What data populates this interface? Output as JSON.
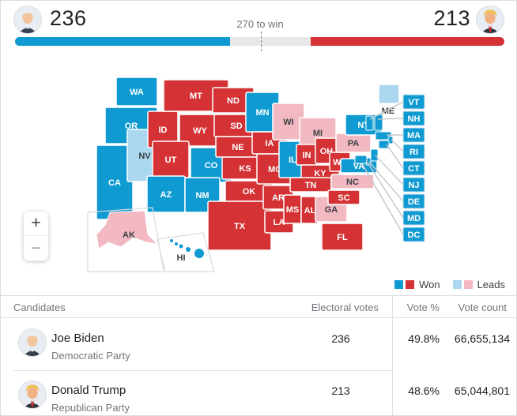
{
  "header": {
    "dem_electoral": "236",
    "rep_electoral": "213",
    "target_label": "270 to win",
    "bar": {
      "dem_pct": 43.9,
      "rep_pct": 39.6,
      "marker_pct": 50.2
    }
  },
  "colors": {
    "dem_won": "#0f9ad2",
    "rep_won": "#d43234",
    "dem_leads": "#abd7ef",
    "rep_leads": "#f2b9c2",
    "bar_track": "#e8e8e8",
    "label_on_won": "#ffffff",
    "label_on_leads": "#3b4045",
    "leader_line": "#c6c9cd",
    "inset_border": "#d8dadd"
  },
  "map": {
    "states": [
      {
        "abbr": "WA",
        "status": "dem_won"
      },
      {
        "abbr": "OR",
        "status": "dem_won"
      },
      {
        "abbr": "CA",
        "status": "dem_won"
      },
      {
        "abbr": "NV",
        "status": "dem_leads"
      },
      {
        "abbr": "ID",
        "status": "rep_won"
      },
      {
        "abbr": "MT",
        "status": "rep_won"
      },
      {
        "abbr": "WY",
        "status": "rep_won"
      },
      {
        "abbr": "UT",
        "status": "rep_won"
      },
      {
        "abbr": "CO",
        "status": "dem_won"
      },
      {
        "abbr": "AZ",
        "status": "dem_won"
      },
      {
        "abbr": "NM",
        "status": "dem_won"
      },
      {
        "abbr": "ND",
        "status": "rep_won"
      },
      {
        "abbr": "SD",
        "status": "rep_won"
      },
      {
        "abbr": "NE",
        "status": "rep_won"
      },
      {
        "abbr": "KS",
        "status": "rep_won"
      },
      {
        "abbr": "OK",
        "status": "rep_won"
      },
      {
        "abbr": "TX",
        "status": "rep_won"
      },
      {
        "abbr": "MN",
        "status": "dem_won"
      },
      {
        "abbr": "IA",
        "status": "rep_won"
      },
      {
        "abbr": "MO",
        "status": "rep_won"
      },
      {
        "abbr": "AR",
        "status": "rep_won"
      },
      {
        "abbr": "LA",
        "status": "rep_won"
      },
      {
        "abbr": "WI",
        "status": "rep_leads"
      },
      {
        "abbr": "IL",
        "status": "dem_won"
      },
      {
        "abbr": "MS",
        "status": "rep_won"
      },
      {
        "abbr": "MI",
        "status": "rep_leads"
      },
      {
        "abbr": "IN",
        "status": "rep_won"
      },
      {
        "abbr": "OH",
        "status": "rep_won"
      },
      {
        "abbr": "KY",
        "status": "rep_won"
      },
      {
        "abbr": "TN",
        "status": "rep_won"
      },
      {
        "abbr": "AL",
        "status": "rep_won"
      },
      {
        "abbr": "GA",
        "status": "rep_leads"
      },
      {
        "abbr": "FL",
        "status": "rep_won"
      },
      {
        "abbr": "WV",
        "status": "rep_won"
      },
      {
        "abbr": "PA",
        "status": "rep_leads"
      },
      {
        "abbr": "NY",
        "status": "dem_won"
      },
      {
        "abbr": "VA",
        "status": "dem_won"
      },
      {
        "abbr": "NC",
        "status": "rep_leads"
      },
      {
        "abbr": "SC",
        "status": "rep_won"
      },
      {
        "abbr": "ME",
        "status": "dem_leads"
      }
    ],
    "callouts": [
      {
        "abbr": "VT",
        "status": "dem_won"
      },
      {
        "abbr": "NH",
        "status": "dem_won"
      },
      {
        "abbr": "MA",
        "status": "dem_won"
      },
      {
        "abbr": "RI",
        "status": "dem_won"
      },
      {
        "abbr": "CT",
        "status": "dem_won"
      },
      {
        "abbr": "NJ",
        "status": "dem_won"
      },
      {
        "abbr": "DE",
        "status": "dem_won"
      },
      {
        "abbr": "MD",
        "status": "dem_won"
      },
      {
        "abbr": "DC",
        "status": "dem_won"
      }
    ],
    "insets": {
      "ak": {
        "abbr": "AK",
        "status": "rep_leads"
      },
      "hi": {
        "abbr": "HI",
        "status": "dem_won"
      }
    },
    "legend": {
      "won": "Won",
      "leads": "Leads"
    }
  },
  "zoom_controls": {
    "zoom_in": "+",
    "zoom_out": "−"
  },
  "table": {
    "headers": {
      "candidates": "Candidates",
      "electoral": "Electoral votes",
      "vote_pct": "Vote %",
      "vote_count": "Vote count"
    },
    "rows": [
      {
        "name": "Joe Biden",
        "party": "Democratic Party",
        "electoral": "236",
        "vote_pct": "49.8%",
        "vote_count": "66,655,134"
      },
      {
        "name": "Donald Trump",
        "party": "Republican Party",
        "electoral": "213",
        "vote_pct": "48.6%",
        "vote_count": "65,044,801"
      }
    ]
  }
}
